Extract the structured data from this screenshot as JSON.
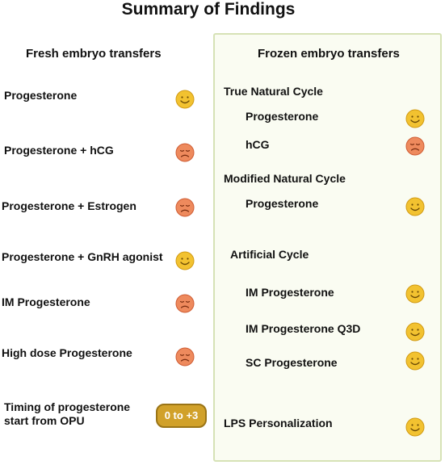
{
  "title": "Summary of Findings",
  "colors": {
    "happy_face": "#f2c230",
    "sad_face": "#ee8a5d",
    "frozen_bg": "#fafcf2",
    "frozen_border": "#d6e2b6",
    "pill": "#d1a12a"
  },
  "fresh": {
    "heading": "Fresh embryo transfers",
    "items": [
      {
        "label": "Progesterone",
        "outcome": "happy-face-icon"
      },
      {
        "label": "Progesterone + hCG",
        "outcome": "sad-face-icon"
      },
      {
        "label": "Progesterone + Estrogen",
        "outcome": "sad-face-icon"
      },
      {
        "label": "Progesterone + GnRH agonist",
        "outcome": "happy-face-icon"
      },
      {
        "label": "IM Progesterone",
        "outcome": "sad-face-icon"
      },
      {
        "label": "High dose Progesterone",
        "outcome": "sad-face-icon"
      }
    ],
    "timing": {
      "line1": "Timing of progesterone",
      "line2": "start from OPU",
      "value": "0  to +3"
    }
  },
  "frozen": {
    "heading": "Frozen embryo transfers",
    "groups": [
      {
        "name": "True Natural Cycle",
        "items": [
          {
            "label": "Progesterone",
            "outcome": "happy-face-icon"
          },
          {
            "label": "hCG",
            "outcome": "sad-face-icon"
          }
        ]
      },
      {
        "name": "Modified Natural Cycle",
        "items": [
          {
            "label": "Progesterone",
            "outcome": "happy-face-icon"
          }
        ]
      },
      {
        "name": "Artificial Cycle",
        "items": [
          {
            "label": "IM Progesterone",
            "outcome": "happy-face-icon"
          },
          {
            "label": "IM Progesterone Q3D",
            "outcome": "happy-face-icon"
          },
          {
            "label": "SC Progesterone",
            "outcome": "happy-face-icon"
          }
        ]
      }
    ],
    "lps": {
      "label": "LPS Personalization",
      "outcome": "happy-face-icon"
    }
  }
}
